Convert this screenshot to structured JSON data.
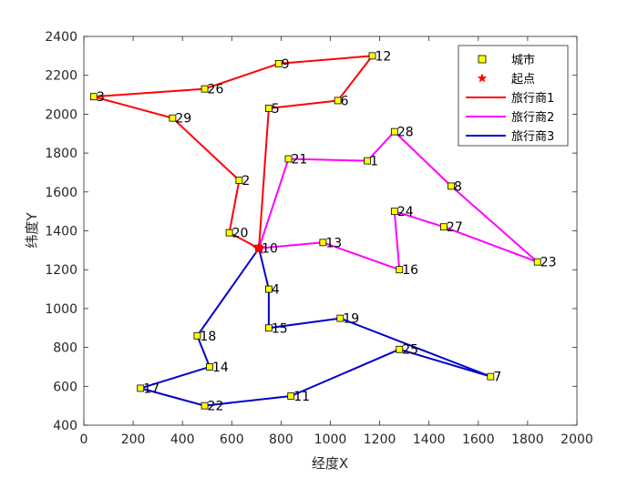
{
  "chart_data": {
    "type": "line",
    "xlabel": "经度X",
    "ylabel": "纬度Y",
    "xlim": [
      0,
      2000
    ],
    "ylim": [
      400,
      2400
    ],
    "xticks": [
      0,
      200,
      400,
      600,
      800,
      1000,
      1200,
      1400,
      1600,
      1800,
      2000
    ],
    "yticks": [
      400,
      600,
      800,
      1000,
      1200,
      1400,
      1600,
      1800,
      2000,
      2200,
      2400
    ],
    "grid": false,
    "legend_position": "top-right",
    "cities": [
      {
        "id": "1",
        "x": 1150,
        "y": 1760
      },
      {
        "id": "2",
        "x": 630,
        "y": 1660
      },
      {
        "id": "4",
        "x": 750,
        "y": 1100
      },
      {
        "id": "5",
        "x": 750,
        "y": 2030
      },
      {
        "id": "6",
        "x": 1030,
        "y": 2070
      },
      {
        "id": "7",
        "x": 1650,
        "y": 650
      },
      {
        "id": "8",
        "x": 1490,
        "y": 1630
      },
      {
        "id": "9",
        "x": 790,
        "y": 2260
      },
      {
        "id": "10",
        "x": 710,
        "y": 1310
      },
      {
        "id": "11",
        "x": 840,
        "y": 550
      },
      {
        "id": "12",
        "x": 1170,
        "y": 2300
      },
      {
        "id": "13",
        "x": 970,
        "y": 1340
      },
      {
        "id": "14",
        "x": 510,
        "y": 700
      },
      {
        "id": "15",
        "x": 750,
        "y": 900
      },
      {
        "id": "16",
        "x": 1280,
        "y": 1200
      },
      {
        "id": "17",
        "x": 230,
        "y": 590
      },
      {
        "id": "18",
        "x": 460,
        "y": 860
      },
      {
        "id": "19",
        "x": 1040,
        "y": 950
      },
      {
        "id": "20",
        "x": 590,
        "y": 1390
      },
      {
        "id": "21",
        "x": 830,
        "y": 1770
      },
      {
        "id": "22",
        "x": 490,
        "y": 500
      },
      {
        "id": "23",
        "x": 1840,
        "y": 1240
      },
      {
        "id": "24",
        "x": 1260,
        "y": 1500
      },
      {
        "id": "25",
        "x": 1280,
        "y": 790
      },
      {
        "id": "26",
        "x": 490,
        "y": 2130
      },
      {
        "id": "27",
        "x": 1460,
        "y": 1420
      },
      {
        "id": "28",
        "x": 1260,
        "y": 1910
      },
      {
        "id": "29",
        "x": 360,
        "y": 1980
      },
      {
        "id": "3",
        "x": 40,
        "y": 2090
      }
    ],
    "start": {
      "x": 710,
      "y": 1310
    },
    "series": [
      {
        "name": "旅行商1",
        "color": "#ff0000",
        "route": [
          "10",
          "20",
          "2",
          "29",
          "3",
          "26",
          "9",
          "12",
          "6",
          "5",
          "10"
        ]
      },
      {
        "name": "旅行商2",
        "color": "#ff00ff",
        "route": [
          "10",
          "21",
          "1",
          "28",
          "8",
          "23",
          "27",
          "24",
          "16",
          "13",
          "10"
        ]
      },
      {
        "name": "旅行商3",
        "color": "#0000cc",
        "route": [
          "10",
          "18",
          "14",
          "17",
          "22",
          "11",
          "25",
          "7",
          "19",
          "15",
          "4",
          "10"
        ]
      }
    ],
    "legend": {
      "city": "城市",
      "start": "起点",
      "series_names": [
        "旅行商1",
        "旅行商2",
        "旅行商3"
      ]
    },
    "colors": {
      "marker_fill": "#ffff00",
      "marker_edge": "#000000",
      "start_marker": "#ff0000"
    }
  }
}
